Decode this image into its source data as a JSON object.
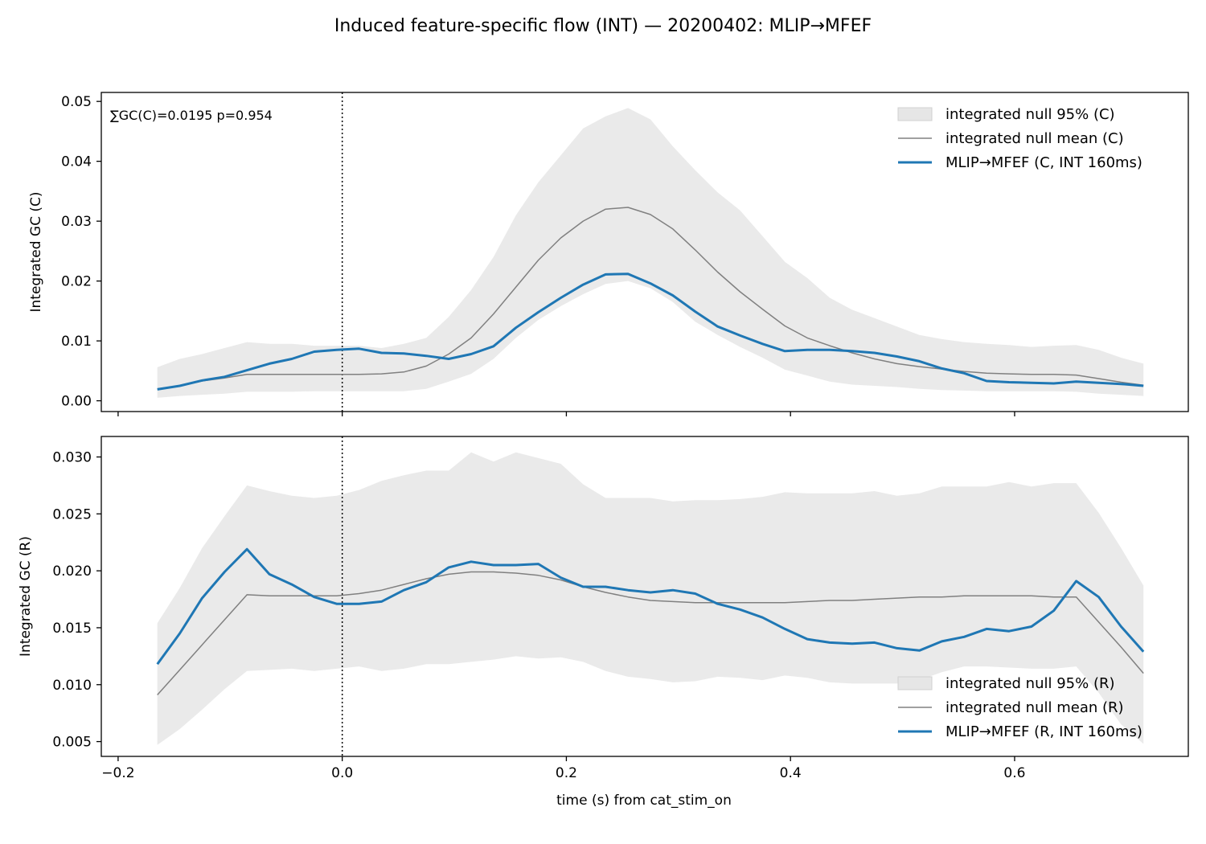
{
  "figure": {
    "title": "Induced feature-specific flow (INT) — 20200402: MLIP→MFEF",
    "xlabel": "time (s) from cat_stim_on"
  },
  "colors": {
    "series": "#1f77b4",
    "null_mean": "#808080",
    "null_band": "#e6e6e6",
    "stim_marker": "#000000"
  },
  "chart_data": [
    {
      "type": "line",
      "ylabel": "Integrated GC (C)",
      "annotation": "∑GC(C)=0.0195  p=0.954",
      "xlim": [
        -0.215,
        0.755
      ],
      "ylim": [
        -0.0018,
        0.0515
      ],
      "xticks": [
        -0.2,
        0.0,
        0.2,
        0.4,
        0.6
      ],
      "xtick_labels": [
        "",
        "",
        "",
        "",
        ""
      ],
      "yticks": [
        0.0,
        0.01,
        0.02,
        0.03,
        0.04,
        0.05
      ],
      "ytick_labels": [
        "0.00",
        "0.01",
        "0.02",
        "0.03",
        "0.04",
        "0.05"
      ],
      "vline_x": 0.0,
      "grid": false,
      "legend_position": "top-right",
      "x": [
        -0.165,
        -0.145,
        -0.125,
        -0.105,
        -0.085,
        -0.065,
        -0.045,
        -0.025,
        -0.005,
        0.015,
        0.035,
        0.055,
        0.075,
        0.095,
        0.115,
        0.135,
        0.155,
        0.175,
        0.195,
        0.215,
        0.235,
        0.255,
        0.275,
        0.295,
        0.315,
        0.335,
        0.355,
        0.375,
        0.395,
        0.415,
        0.435,
        0.455,
        0.475,
        0.495,
        0.515,
        0.535,
        0.555,
        0.575,
        0.595,
        0.615,
        0.635,
        0.655,
        0.675,
        0.695,
        0.715
      ],
      "band": {
        "name": "integrated null 95% (C)",
        "upper": [
          0.0056,
          0.007,
          0.0078,
          0.0088,
          0.0098,
          0.0095,
          0.0095,
          0.0092,
          0.0092,
          0.0092,
          0.0088,
          0.0095,
          0.0105,
          0.014,
          0.0185,
          0.024,
          0.031,
          0.0365,
          0.041,
          0.0455,
          0.0475,
          0.0489,
          0.047,
          0.0425,
          0.0385,
          0.0348,
          0.0318,
          0.0275,
          0.0232,
          0.0205,
          0.0172,
          0.0152,
          0.0138,
          0.0124,
          0.011,
          0.0103,
          0.0098,
          0.0095,
          0.0093,
          0.009,
          0.0092,
          0.0093,
          0.0085,
          0.0072,
          0.0062
        ],
        "lower": [
          0.0005,
          0.0008,
          0.001,
          0.0012,
          0.0015,
          0.0015,
          0.0015,
          0.0016,
          0.0016,
          0.0016,
          0.0016,
          0.0016,
          0.002,
          0.0032,
          0.0045,
          0.007,
          0.0105,
          0.0135,
          0.0158,
          0.0178,
          0.0195,
          0.02,
          0.0188,
          0.0165,
          0.0132,
          0.011,
          0.009,
          0.0072,
          0.0052,
          0.0042,
          0.0032,
          0.0027,
          0.0025,
          0.0023,
          0.002,
          0.0018,
          0.0017,
          0.0016,
          0.0016,
          0.0016,
          0.0016,
          0.0015,
          0.0012,
          0.001,
          0.0008
        ]
      },
      "series": [
        {
          "name": "integrated null mean (C)",
          "role": "null_mean",
          "values": [
            0.002,
            0.0025,
            0.0033,
            0.0038,
            0.0044,
            0.0044,
            0.0044,
            0.0044,
            0.0044,
            0.0044,
            0.0045,
            0.0048,
            0.0058,
            0.0078,
            0.0105,
            0.0145,
            0.019,
            0.0235,
            0.0272,
            0.03,
            0.032,
            0.0323,
            0.0311,
            0.0287,
            0.0252,
            0.0215,
            0.0182,
            0.0153,
            0.0125,
            0.0105,
            0.0092,
            0.008,
            0.007,
            0.0062,
            0.0057,
            0.0053,
            0.0049,
            0.0046,
            0.0045,
            0.0044,
            0.0044,
            0.0043,
            0.0037,
            0.0031,
            0.0026
          ]
        },
        {
          "name": "MLIP→MFEF (C, INT 160ms)",
          "role": "series",
          "values": [
            0.0019,
            0.0025,
            0.0034,
            0.004,
            0.0051,
            0.0062,
            0.007,
            0.0082,
            0.0085,
            0.0087,
            0.008,
            0.0079,
            0.0075,
            0.007,
            0.0078,
            0.0091,
            0.0122,
            0.0148,
            0.0172,
            0.0194,
            0.0211,
            0.0212,
            0.0196,
            0.0176,
            0.0149,
            0.0124,
            0.0109,
            0.0095,
            0.0083,
            0.0085,
            0.0085,
            0.0083,
            0.008,
            0.0074,
            0.0066,
            0.0054,
            0.0046,
            0.0033,
            0.0031,
            0.003,
            0.0029,
            0.0032,
            0.003,
            0.0028,
            0.0025
          ]
        }
      ]
    },
    {
      "type": "line",
      "ylabel": "Integrated GC (R)",
      "xlim": [
        -0.215,
        0.755
      ],
      "ylim": [
        0.0037,
        0.0318
      ],
      "xticks": [
        -0.2,
        0.0,
        0.2,
        0.4,
        0.6
      ],
      "xtick_labels": [
        "−0.2",
        "0.0",
        "0.2",
        "0.4",
        "0.6"
      ],
      "yticks": [
        0.005,
        0.01,
        0.015,
        0.02,
        0.025,
        0.03
      ],
      "ytick_labels": [
        "0.005",
        "0.010",
        "0.015",
        "0.020",
        "0.025",
        "0.030"
      ],
      "vline_x": 0.0,
      "grid": false,
      "legend_position": "bottom-right",
      "x": [
        -0.165,
        -0.145,
        -0.125,
        -0.105,
        -0.085,
        -0.065,
        -0.045,
        -0.025,
        -0.005,
        0.015,
        0.035,
        0.055,
        0.075,
        0.095,
        0.115,
        0.135,
        0.155,
        0.175,
        0.195,
        0.215,
        0.235,
        0.255,
        0.275,
        0.295,
        0.315,
        0.335,
        0.355,
        0.375,
        0.395,
        0.415,
        0.435,
        0.455,
        0.475,
        0.495,
        0.515,
        0.535,
        0.555,
        0.575,
        0.595,
        0.615,
        0.635,
        0.655,
        0.675,
        0.695,
        0.715
      ],
      "band": {
        "name": "integrated null 95% (R)",
        "upper": [
          0.0154,
          0.0185,
          0.022,
          0.0248,
          0.0275,
          0.027,
          0.0266,
          0.0264,
          0.0266,
          0.0271,
          0.0279,
          0.0284,
          0.0288,
          0.0288,
          0.0304,
          0.0296,
          0.0304,
          0.0299,
          0.0294,
          0.0276,
          0.0264,
          0.0264,
          0.0264,
          0.0261,
          0.0262,
          0.0262,
          0.0263,
          0.0265,
          0.0269,
          0.0268,
          0.0268,
          0.0268,
          0.027,
          0.0266,
          0.0268,
          0.0274,
          0.0274,
          0.0274,
          0.0278,
          0.0274,
          0.0277,
          0.0277,
          0.0251,
          0.022,
          0.0187
        ],
        "lower": [
          0.0047,
          0.0061,
          0.0078,
          0.0096,
          0.0112,
          0.0113,
          0.0114,
          0.0112,
          0.0114,
          0.0116,
          0.0112,
          0.0114,
          0.0118,
          0.0118,
          0.012,
          0.0122,
          0.0125,
          0.0123,
          0.0124,
          0.012,
          0.0112,
          0.0107,
          0.0105,
          0.0102,
          0.0103,
          0.0107,
          0.0106,
          0.0104,
          0.0108,
          0.0106,
          0.0102,
          0.0101,
          0.0101,
          0.0101,
          0.0104,
          0.0111,
          0.0116,
          0.0116,
          0.0115,
          0.0114,
          0.0114,
          0.0116,
          0.0093,
          0.0065,
          0.0048
        ]
      },
      "series": [
        {
          "name": "integrated null mean (R)",
          "role": "null_mean",
          "values": [
            0.0091,
            0.0113,
            0.0135,
            0.0157,
            0.0179,
            0.0178,
            0.0178,
            0.0178,
            0.0178,
            0.018,
            0.0183,
            0.0188,
            0.0193,
            0.0197,
            0.0199,
            0.0199,
            0.0198,
            0.0196,
            0.0192,
            0.0186,
            0.0181,
            0.0177,
            0.0174,
            0.0173,
            0.0172,
            0.0172,
            0.0172,
            0.0172,
            0.0172,
            0.0173,
            0.0174,
            0.0174,
            0.0175,
            0.0176,
            0.0177,
            0.0177,
            0.0178,
            0.0178,
            0.0178,
            0.0178,
            0.0177,
            0.0177,
            0.0155,
            0.0133,
            0.011
          ]
        },
        {
          "name": "MLIP→MFEF (R, INT 160ms)",
          "role": "series",
          "values": [
            0.0118,
            0.0145,
            0.0176,
            0.0199,
            0.0219,
            0.0197,
            0.0188,
            0.0177,
            0.0171,
            0.0171,
            0.0173,
            0.0183,
            0.019,
            0.0203,
            0.0208,
            0.0205,
            0.0205,
            0.0206,
            0.0194,
            0.0186,
            0.0186,
            0.0183,
            0.0181,
            0.0183,
            0.018,
            0.0171,
            0.0166,
            0.0159,
            0.0149,
            0.014,
            0.0137,
            0.0136,
            0.0137,
            0.0132,
            0.013,
            0.0138,
            0.0142,
            0.0149,
            0.0147,
            0.0151,
            0.0165,
            0.0191,
            0.0177,
            0.0151,
            0.0129
          ]
        }
      ]
    }
  ]
}
